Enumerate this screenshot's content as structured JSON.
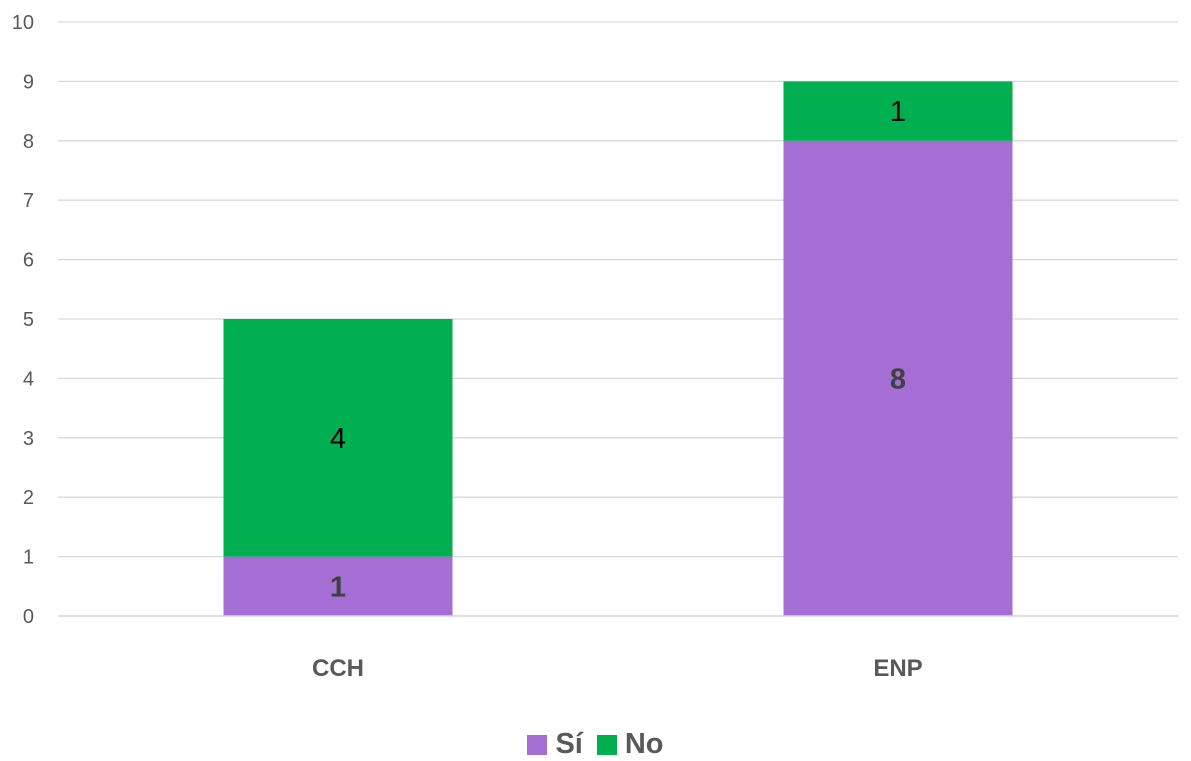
{
  "chart_data": {
    "type": "bar",
    "stacked": true,
    "categories": [
      "CCH",
      "ENP"
    ],
    "series": [
      {
        "name": "Sí",
        "values": [
          1,
          8
        ],
        "color": "#A56ED5"
      },
      {
        "name": "No",
        "values": [
          4,
          1
        ],
        "color": "#00B050"
      }
    ],
    "ylim": [
      0,
      10
    ],
    "yticks": [
      0,
      1,
      2,
      3,
      4,
      5,
      6,
      7,
      8,
      9,
      10
    ],
    "xlabel": "",
    "ylabel": "",
    "grid": true,
    "legend": "bottom",
    "data_labels": true
  }
}
